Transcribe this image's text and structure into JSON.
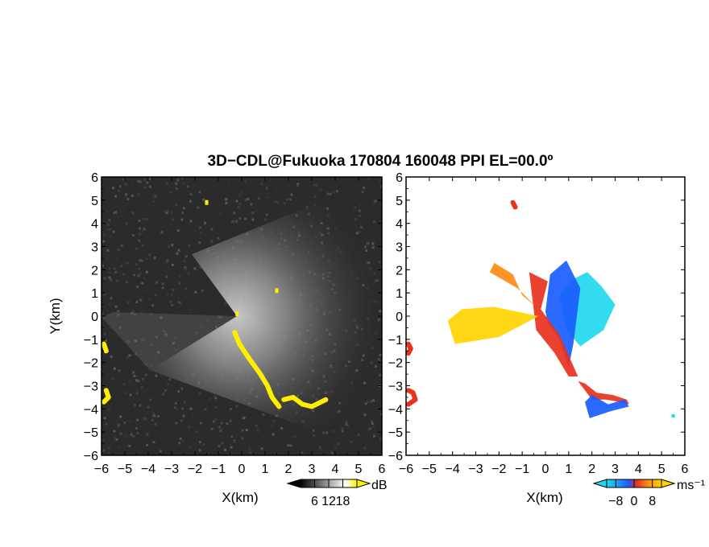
{
  "title": "3D−CDL@Fukuoka 170804 160048 PPI EL=00.0º",
  "colors": {
    "background_left": "#2b2b2b",
    "echo_yellow": "#ffee00",
    "velocity_cyan": "#22d8f0",
    "velocity_blue": "#1a5cff",
    "velocity_red": "#e8321c",
    "velocity_orange": "#ff8a10",
    "velocity_yellow": "#ffd400"
  },
  "chart_data": [
    {
      "type": "heatmap",
      "name": "snr",
      "xlabel": "X(km)",
      "ylabel": "Y(km)",
      "xlim": [
        -6,
        6
      ],
      "ylim": [
        -6,
        6
      ],
      "xticks": [
        -6,
        -5,
        -4,
        -3,
        -2,
        -1,
        0,
        1,
        2,
        3,
        4,
        5,
        6
      ],
      "yticks": [
        -6,
        -5,
        -4,
        -3,
        -2,
        -1,
        0,
        1,
        2,
        3,
        4,
        5,
        6
      ],
      "colorbar": {
        "unit": "dB",
        "ticks": [
          6,
          12,
          18
        ],
        "range": [
          0,
          24
        ],
        "colors": [
          "#000000",
          "#ffffff",
          "#ffee00"
        ]
      },
      "echoes": [
        {
          "x": [
            -0.3,
            -0.1,
            0.3,
            0.8,
            1.1,
            1.3,
            1.6
          ],
          "y": [
            -0.7,
            -1.2,
            -1.8,
            -2.5,
            -3.0,
            -3.5,
            -3.9
          ]
        },
        {
          "x": [
            1.8,
            2.2,
            2.6,
            3.0,
            3.4,
            3.6
          ],
          "y": [
            -3.6,
            -3.5,
            -3.8,
            -3.9,
            -3.7,
            -3.6
          ]
        },
        {
          "x": [
            -5.8,
            -5.7,
            -5.9
          ],
          "y": [
            -3.2,
            -3.5,
            -3.7
          ]
        },
        {
          "x": [
            -5.9,
            -5.8
          ],
          "y": [
            -1.2,
            -1.5
          ]
        },
        {
          "x": [
            -1.5
          ],
          "y": [
            4.9
          ]
        },
        {
          "x": [
            1.5
          ],
          "y": [
            1.1
          ]
        },
        {
          "x": [
            -0.2
          ],
          "y": [
            0.1
          ]
        }
      ]
    },
    {
      "type": "heatmap",
      "name": "velocity",
      "xlabel": "X(km)",
      "ylabel": "",
      "xlim": [
        -6,
        6
      ],
      "ylim": [
        -6,
        6
      ],
      "xticks": [
        -6,
        -5,
        -4,
        -3,
        -2,
        -1,
        0,
        1,
        2,
        3,
        4,
        5,
        6
      ],
      "yticks": [
        -6,
        -5,
        -4,
        -3,
        -2,
        -1,
        0,
        1,
        2,
        3,
        4,
        5,
        6
      ],
      "colorbar": {
        "unit": "ms⁻¹",
        "ticks": [
          -8,
          0,
          8
        ],
        "range": [
          -12,
          12
        ],
        "colors": [
          "#22d8f0",
          "#1a5cff",
          "#e8321c",
          "#ff8a10",
          "#ffd400"
        ]
      },
      "regions": [
        {
          "color": "velocity_cyan",
          "x": [
            0.6,
            1.2,
            1.8,
            2.4,
            3.0,
            2.5,
            1.5,
            0.9
          ],
          "y": [
            0.9,
            1.6,
            1.9,
            1.3,
            0.5,
            -0.6,
            -1.3,
            -0.6
          ]
        },
        {
          "color": "velocity_blue",
          "x": [
            0.0,
            0.2,
            0.9,
            1.5,
            1.2,
            1.0,
            0.6,
            0.1
          ],
          "y": [
            0.2,
            1.8,
            2.4,
            1.2,
            -1.2,
            -2.2,
            -1.0,
            -0.3
          ]
        },
        {
          "color": "velocity_red",
          "x": [
            -0.2,
            0.1,
            -0.7,
            -0.4,
            0.4,
            1.0,
            1.4,
            0.6
          ],
          "y": [
            0.3,
            1.5,
            1.9,
            -0.6,
            -1.6,
            -2.6,
            -2.6,
            -0.8
          ]
        },
        {
          "color": "velocity_orange",
          "x": [
            -2.4,
            -2.2,
            -1.4,
            -1.0,
            -0.4,
            -1.2
          ],
          "y": [
            1.9,
            2.3,
            1.8,
            0.9,
            0.4,
            1.2
          ]
        },
        {
          "color": "velocity_yellow",
          "x": [
            -4.2,
            -3.6,
            -2.2,
            -0.3,
            -2.0,
            -3.9
          ],
          "y": [
            -0.2,
            0.3,
            0.4,
            0.0,
            -0.9,
            -1.2
          ]
        },
        {
          "color": "velocity_red",
          "x": [
            1.4,
            1.7,
            2.0,
            2.6,
            3.2,
            3.6,
            3.5,
            2.9,
            2.2,
            1.7
          ],
          "y": [
            -2.8,
            -3.2,
            -3.6,
            -3.6,
            -3.7,
            -3.8,
            -3.6,
            -3.4,
            -3.3,
            -2.9
          ]
        },
        {
          "color": "velocity_blue",
          "x": [
            1.7,
            1.9,
            2.8,
            3.6,
            3.4,
            2.7,
            2.0
          ],
          "y": [
            -3.7,
            -4.4,
            -4.1,
            -3.9,
            -3.6,
            -3.8,
            -3.4
          ]
        },
        {
          "color": "velocity_red",
          "x": [
            -5.9,
            -5.7,
            -5.6,
            -5.9
          ],
          "y": [
            -3.2,
            -3.3,
            -3.6,
            -3.8
          ]
        },
        {
          "color": "velocity_red",
          "x": [
            -5.9,
            -5.8,
            -5.9
          ],
          "y": [
            -1.2,
            -1.4,
            -1.6
          ]
        },
        {
          "color": "velocity_red",
          "x": [
            -1.4,
            -1.3
          ],
          "y": [
            4.9,
            4.7
          ]
        },
        {
          "color": "velocity_cyan",
          "x": [
            5.5
          ],
          "y": [
            -4.3
          ]
        }
      ]
    }
  ]
}
